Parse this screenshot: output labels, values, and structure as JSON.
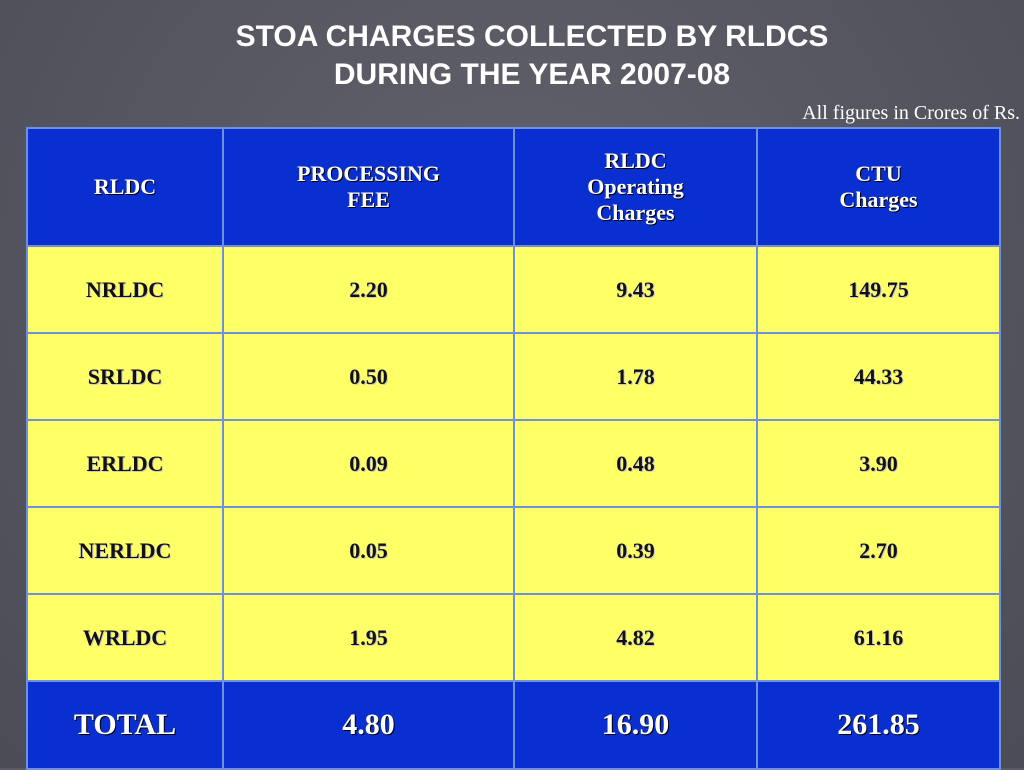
{
  "slide": {
    "title_line1": "STOA CHARGES COLLECTED BY RLDCS",
    "title_line2": "DURING THE YEAR 2007-08",
    "note": "All figures in Crores of  Rs."
  },
  "table": {
    "headers": [
      {
        "lines": [
          "RLDC"
        ]
      },
      {
        "lines": [
          "PROCESSING",
          "FEE"
        ]
      },
      {
        "lines": [
          "RLDC",
          "Operating",
          "Charges"
        ]
      },
      {
        "lines": [
          "CTU",
          "Charges"
        ]
      }
    ],
    "rows": [
      {
        "rldc": "NRLDC",
        "processing_fee": "2.20",
        "operating_charges": "9.43",
        "ctu_charges": "149.75"
      },
      {
        "rldc": "SRLDC",
        "processing_fee": "0.50",
        "operating_charges": "1.78",
        "ctu_charges": "44.33"
      },
      {
        "rldc": "ERLDC",
        "processing_fee": "0.09",
        "operating_charges": "0.48",
        "ctu_charges": "3.90"
      },
      {
        "rldc": "NERLDC",
        "processing_fee": "0.05",
        "operating_charges": "0.39",
        "ctu_charges": "2.70"
      },
      {
        "rldc": "WRLDC",
        "processing_fee": "1.95",
        "operating_charges": "4.82",
        "ctu_charges": "61.16"
      }
    ],
    "total": {
      "label": "TOTAL",
      "processing_fee": "4.80",
      "operating_charges": "16.90",
      "ctu_charges": "261.85"
    }
  },
  "colors": {
    "header_bg": "#0a2fd0",
    "row_bg": "#ffff66",
    "slide_bg": "#5a5a64"
  }
}
